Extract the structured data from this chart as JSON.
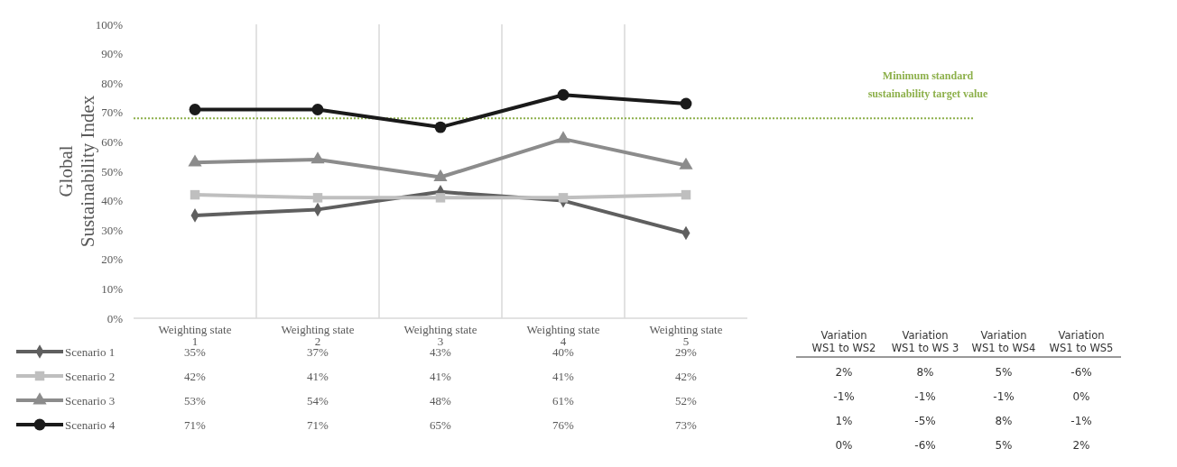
{
  "chart_data": [
    {
      "type": "line",
      "ylabel": "Global Sustainability Index",
      "categories": [
        "Weighting state 1",
        "Weighting state 2",
        "Weighting state 3",
        "Weighting state 4",
        "Weighting state 5"
      ],
      "ylim": [
        0,
        100
      ],
      "yticks": [
        {
          "value": 0,
          "label": "0%"
        },
        {
          "value": 10,
          "label": "10%"
        },
        {
          "value": 20,
          "label": "20%"
        },
        {
          "value": 30,
          "label": "30%"
        },
        {
          "value": 40,
          "label": "40%"
        },
        {
          "value": 50,
          "label": "50%"
        },
        {
          "value": 60,
          "label": "60%"
        },
        {
          "value": 70,
          "label": "70%"
        },
        {
          "value": 80,
          "label": "80%"
        },
        {
          "value": 90,
          "label": "90%"
        },
        {
          "value": 100,
          "label": "100%"
        }
      ],
      "grid": "x",
      "legend": "bottom left",
      "series": [
        {
          "name": "Scenario 1",
          "color": "#5f5f5f",
          "marker": "diamond",
          "values": [
            35,
            37,
            43,
            40,
            29
          ],
          "value_labels": [
            "35%",
            "37%",
            "43%",
            "40%",
            "29%"
          ]
        },
        {
          "name": "Scenario 2",
          "color": "#bfbfbf",
          "marker": "square",
          "values": [
            42,
            41,
            41,
            41,
            42
          ],
          "value_labels": [
            "42%",
            "41%",
            "41%",
            "41%",
            "42%"
          ]
        },
        {
          "name": "Scenario 3",
          "color": "#8c8c8c",
          "marker": "triangle",
          "values": [
            53,
            54,
            48,
            61,
            52
          ],
          "value_labels": [
            "53%",
            "54%",
            "48%",
            "61%",
            "52%"
          ]
        },
        {
          "name": "Scenario 4",
          "color": "#1a1a1a",
          "marker": "circle",
          "values": [
            71,
            71,
            65,
            76,
            73
          ],
          "value_labels": [
            "71%",
            "71%",
            "65%",
            "76%",
            "73%"
          ]
        }
      ],
      "ref_lines": [
        {
          "axis": "y",
          "value": 68,
          "label": "Minimum standard sustainability target value",
          "color": "#8db04b",
          "line_style": "dotted"
        }
      ]
    },
    {
      "type": "other",
      "categories": [
        "Variation WS1 to WS2",
        "Variation WS1 to WS 3",
        "Variation WS1 to WS4",
        "Variation WS1 to WS5"
      ],
      "annotations": [
        "2%",
        "8%",
        "5%",
        "-6%",
        "-1%",
        "-1%",
        "-1%",
        "0%",
        "1%",
        "-5%",
        "8%",
        "-1%",
        "0%",
        "-6%",
        "5%",
        "2%"
      ]
    }
  ]
}
